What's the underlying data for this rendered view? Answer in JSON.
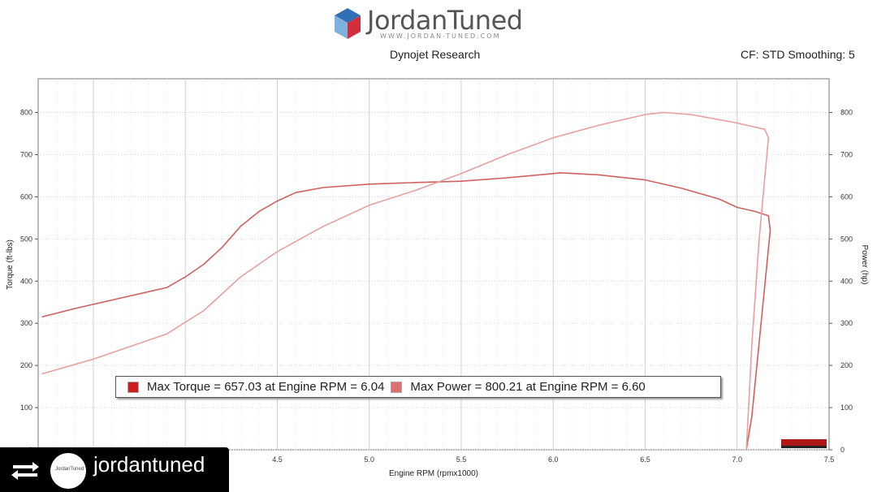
{
  "header": {
    "logo_text": "JordanTuned",
    "logo_sub": "WWW.JORDAN-TUNED.COM",
    "subtitle": "Dynojet Research",
    "correction": "CF: STD Smoothing: 5"
  },
  "badge": {
    "username": "jordantuned",
    "avatar_text": "JordanTuned",
    "icon": "repost-icon"
  },
  "chart_data": {
    "type": "line",
    "xlabel": "Engine RPM (rpmx1000)",
    "ylabel": "Torque (ft-lbs)",
    "y2label": "Power (hp)",
    "xlim": [
      3.2,
      7.5
    ],
    "ylim": [
      0,
      880
    ],
    "y2lim": [
      0,
      880
    ],
    "x_ticks": [
      "4.5",
      "5.0",
      "5.5",
      "6.0",
      "6.5",
      "7.0",
      "7.5"
    ],
    "y_ticks": [
      "0",
      "100",
      "200",
      "300",
      "400",
      "500",
      "600",
      "700",
      "800"
    ],
    "y2_ticks": [
      "0",
      "100",
      "200",
      "300",
      "400",
      "500",
      "600",
      "700",
      "800"
    ],
    "grid": true,
    "legend_position": "bottom-center",
    "series": [
      {
        "name": "Max Torque = 657.03 at Engine RPM = 6.04",
        "color": "#d06060",
        "swatch_color": "#cc1f1f",
        "points": [
          [
            3.22,
            315
          ],
          [
            3.4,
            335
          ],
          [
            3.6,
            355
          ],
          [
            3.8,
            375
          ],
          [
            3.9,
            385
          ],
          [
            4.0,
            410
          ],
          [
            4.1,
            440
          ],
          [
            4.2,
            480
          ],
          [
            4.3,
            530
          ],
          [
            4.4,
            565
          ],
          [
            4.5,
            590
          ],
          [
            4.6,
            610
          ],
          [
            4.75,
            622
          ],
          [
            5.0,
            630
          ],
          [
            5.25,
            634
          ],
          [
            5.5,
            637
          ],
          [
            5.75,
            645
          ],
          [
            6.0,
            655
          ],
          [
            6.04,
            657
          ],
          [
            6.25,
            652
          ],
          [
            6.5,
            640
          ],
          [
            6.7,
            620
          ],
          [
            6.9,
            595
          ],
          [
            7.0,
            575
          ],
          [
            7.1,
            565
          ],
          [
            7.17,
            555
          ],
          [
            7.18,
            520
          ],
          [
            7.13,
            300
          ],
          [
            7.08,
            80
          ],
          [
            7.05,
            0
          ]
        ]
      },
      {
        "name": "Max Power = 800.21 at Engine RPM = 6.60",
        "color": "#e6a0a0",
        "swatch_color": "#e07070",
        "points": [
          [
            3.22,
            180
          ],
          [
            3.5,
            215
          ],
          [
            3.7,
            245
          ],
          [
            3.9,
            275
          ],
          [
            4.1,
            330
          ],
          [
            4.3,
            410
          ],
          [
            4.5,
            470
          ],
          [
            4.75,
            530
          ],
          [
            5.0,
            580
          ],
          [
            5.25,
            615
          ],
          [
            5.5,
            655
          ],
          [
            5.75,
            700
          ],
          [
            6.0,
            740
          ],
          [
            6.25,
            770
          ],
          [
            6.5,
            795
          ],
          [
            6.6,
            800
          ],
          [
            6.75,
            795
          ],
          [
            7.0,
            775
          ],
          [
            7.1,
            765
          ],
          [
            7.15,
            760
          ],
          [
            7.17,
            740
          ],
          [
            7.12,
            500
          ],
          [
            7.08,
            250
          ],
          [
            7.05,
            0
          ]
        ]
      }
    ]
  }
}
